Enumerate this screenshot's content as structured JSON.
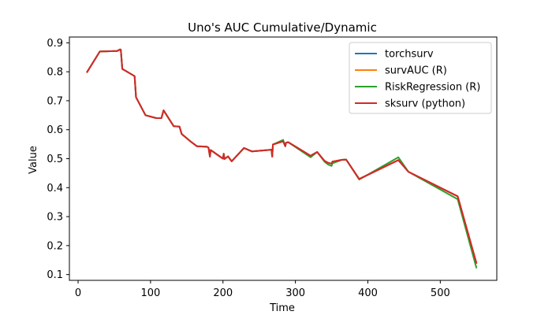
{
  "chart_data": {
    "type": "line",
    "title": "Uno's AUC Cumulative/Dynamic",
    "xlabel": "Time",
    "ylabel": "Value",
    "xlim": [
      -12,
      578
    ],
    "ylim": [
      0.08,
      0.92
    ],
    "xticks": [
      0,
      100,
      200,
      300,
      400,
      500
    ],
    "yticks": [
      0.1,
      0.2,
      0.3,
      0.4,
      0.5,
      0.6,
      0.7,
      0.8,
      0.9
    ],
    "grid": false,
    "legend_position": "top-right",
    "series": [
      {
        "name": "torchsurv",
        "color": "#1f77b4",
        "x": [
          12,
          30,
          54,
          58,
          59,
          61,
          78,
          80,
          93,
          108,
          115,
          118,
          132,
          140,
          143,
          155,
          164,
          178,
          180,
          182,
          183,
          200,
          201,
          202,
          207,
          212,
          229,
          240,
          267,
          268,
          269,
          283,
          286,
          287,
          290,
          321,
          330,
          340,
          345,
          350,
          351,
          364,
          370,
          388,
          442,
          456,
          524,
          550
        ],
        "y": [
          0.797,
          0.87,
          0.872,
          0.877,
          0.876,
          0.81,
          0.785,
          0.712,
          0.65,
          0.64,
          0.64,
          0.667,
          0.612,
          0.611,
          0.585,
          0.56,
          0.543,
          0.541,
          0.538,
          0.507,
          0.53,
          0.5,
          0.517,
          0.499,
          0.508,
          0.491,
          0.537,
          0.525,
          0.531,
          0.507,
          0.549,
          0.56,
          0.543,
          0.555,
          0.557,
          0.51,
          0.523,
          0.493,
          0.486,
          0.483,
          0.49,
          0.496,
          0.497,
          0.43,
          0.495,
          0.455,
          0.37,
          0.138
        ]
      },
      {
        "name": "survAUC (R)",
        "color": "#ff7f0e",
        "x": [
          12,
          30,
          54,
          58,
          59,
          61,
          78,
          80,
          93,
          108,
          115,
          118,
          132,
          140,
          143,
          155,
          164,
          178,
          180,
          182,
          183,
          200,
          201,
          202,
          207,
          212,
          229,
          240,
          267,
          268,
          269,
          283,
          286,
          287,
          290,
          321,
          330,
          340,
          345,
          350,
          351,
          364,
          370,
          388,
          442,
          456,
          524,
          550
        ],
        "y": [
          0.797,
          0.87,
          0.872,
          0.877,
          0.876,
          0.81,
          0.785,
          0.712,
          0.65,
          0.64,
          0.64,
          0.667,
          0.612,
          0.611,
          0.585,
          0.56,
          0.543,
          0.541,
          0.538,
          0.507,
          0.53,
          0.5,
          0.517,
          0.499,
          0.508,
          0.491,
          0.537,
          0.525,
          0.531,
          0.507,
          0.549,
          0.56,
          0.543,
          0.555,
          0.557,
          0.51,
          0.523,
          0.493,
          0.486,
          0.483,
          0.49,
          0.496,
          0.497,
          0.43,
          0.495,
          0.455,
          0.37,
          0.138
        ]
      },
      {
        "name": "RiskRegression (R)",
        "color": "#2ca02c",
        "x": [
          12,
          30,
          54,
          58,
          59,
          61,
          78,
          80,
          93,
          108,
          115,
          118,
          132,
          140,
          143,
          155,
          164,
          178,
          180,
          182,
          183,
          200,
          201,
          202,
          207,
          212,
          229,
          240,
          267,
          268,
          269,
          283,
          286,
          287,
          290,
          321,
          330,
          340,
          345,
          350,
          351,
          364,
          370,
          388,
          442,
          456,
          524,
          550
        ],
        "y": [
          0.797,
          0.87,
          0.872,
          0.877,
          0.876,
          0.81,
          0.785,
          0.712,
          0.65,
          0.64,
          0.64,
          0.667,
          0.612,
          0.611,
          0.585,
          0.56,
          0.543,
          0.541,
          0.538,
          0.507,
          0.53,
          0.5,
          0.517,
          0.499,
          0.508,
          0.491,
          0.537,
          0.525,
          0.531,
          0.507,
          0.549,
          0.565,
          0.543,
          0.555,
          0.557,
          0.505,
          0.523,
          0.49,
          0.48,
          0.475,
          0.484,
          0.496,
          0.497,
          0.428,
          0.505,
          0.455,
          0.36,
          0.122
        ]
      },
      {
        "name": "sksurv (python)",
        "color": "#d62728",
        "x": [
          12,
          30,
          54,
          58,
          59,
          61,
          78,
          80,
          93,
          108,
          115,
          118,
          132,
          140,
          143,
          155,
          164,
          178,
          180,
          182,
          183,
          200,
          201,
          202,
          207,
          212,
          229,
          240,
          267,
          268,
          269,
          283,
          286,
          287,
          290,
          321,
          330,
          340,
          345,
          350,
          351,
          364,
          370,
          388,
          442,
          456,
          524,
          550
        ],
        "y": [
          0.797,
          0.87,
          0.872,
          0.877,
          0.876,
          0.81,
          0.785,
          0.712,
          0.65,
          0.64,
          0.64,
          0.667,
          0.612,
          0.611,
          0.585,
          0.56,
          0.543,
          0.541,
          0.538,
          0.507,
          0.53,
          0.5,
          0.517,
          0.499,
          0.508,
          0.491,
          0.537,
          0.525,
          0.531,
          0.507,
          0.549,
          0.56,
          0.543,
          0.555,
          0.557,
          0.51,
          0.523,
          0.493,
          0.486,
          0.483,
          0.49,
          0.496,
          0.497,
          0.43,
          0.495,
          0.455,
          0.37,
          0.138
        ]
      }
    ]
  }
}
